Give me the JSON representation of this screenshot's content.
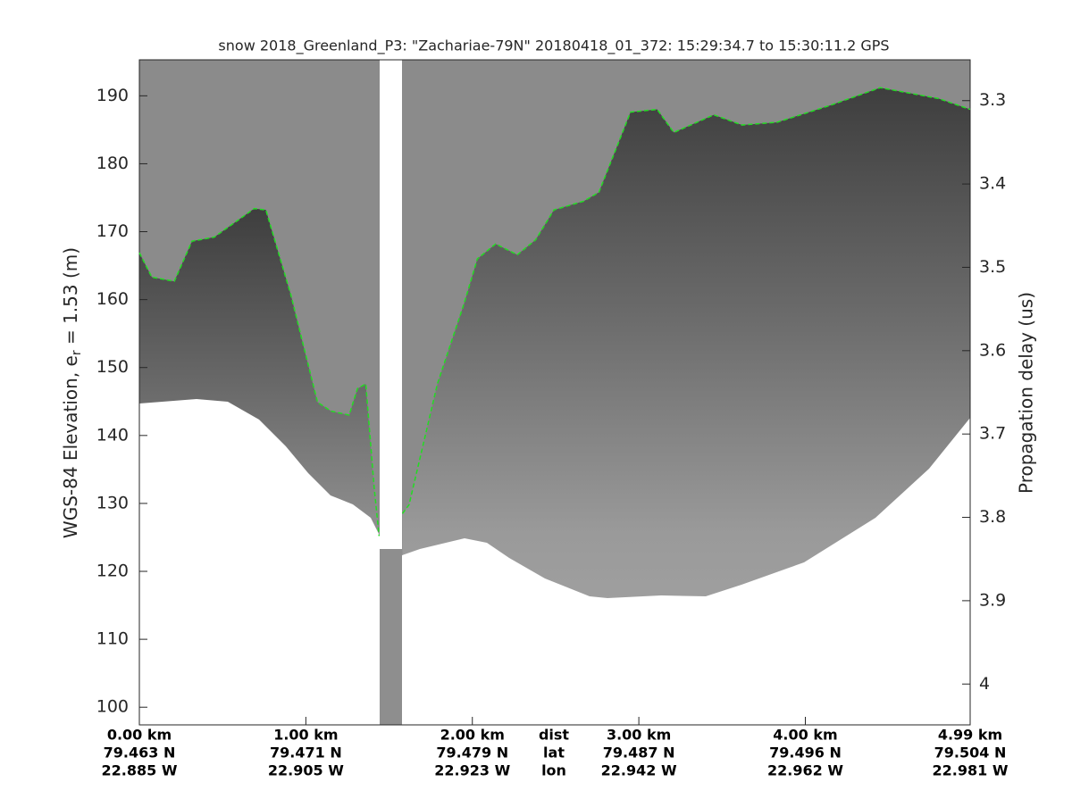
{
  "chart_data": {
    "type": "echogram",
    "title": "snow 2018_Greenland_P3: \"Zachariae-79N\"  20180418_01_372: 15:29:34.7 to 15:30:11.2 GPS",
    "ylabel": [
      "WGS-84 Elevation, e",
      "r",
      " = 1.53 (m)"
    ],
    "y2label": "Propagation delay (us)",
    "xlim": [
      0,
      4.99
    ],
    "ylim": [
      97.4,
      195.3
    ],
    "y2lim": [
      4.049,
      3.251
    ],
    "xticks": [
      {
        "value": 0,
        "label": "0.00 km"
      },
      {
        "value": 1,
        "label": "1.00 km"
      },
      {
        "value": 2,
        "label": "2.00 km"
      },
      {
        "value": 3,
        "label": "3.00 km"
      },
      {
        "value": 4,
        "label": "4.00 km"
      },
      {
        "value": 4.99,
        "label": "4.99 km"
      }
    ],
    "xtick_lat": [
      "79.463 N",
      "79.471 N",
      "79.479 N",
      "79.487 N",
      "79.496 N",
      "79.504 N"
    ],
    "xtick_lon": [
      "22.885 W",
      "22.905 W",
      "22.923 W",
      "22.942 W",
      "22.962 W",
      "22.981 W"
    ],
    "xrow_labels": [
      "dist",
      "lat",
      "lon"
    ],
    "yticks": [
      100,
      110,
      120,
      130,
      140,
      150,
      160,
      170,
      180,
      190
    ],
    "y2ticks": [
      3.3,
      3.4,
      3.5,
      3.6,
      3.7,
      3.8,
      3.9,
      4
    ],
    "series": [
      {
        "name": "surface",
        "color": "#22dd22",
        "dashed": true,
        "x": [
          0,
          0.075,
          0.21,
          0.316,
          0.45,
          0.53,
          0.69,
          0.76,
          0.91,
          1.07,
          1.15,
          1.26,
          1.31,
          1.36,
          1.41,
          1.44,
          null,
          1.58,
          1.62,
          1.79,
          1.95,
          2.03,
          2.14,
          2.27,
          2.38,
          2.49,
          2.67,
          2.76,
          2.95,
          3.11,
          3.21,
          3.45,
          3.62,
          3.83,
          4.15,
          4.45,
          4.8,
          4.99
        ],
        "values": [
          166.9,
          163.3,
          162.7,
          168.6,
          169.2,
          170.6,
          173.4,
          173.2,
          160.7,
          144.9,
          143.6,
          143.0,
          146.9,
          147.6,
          132.4,
          125.2,
          null,
          128.5,
          129.8,
          147.6,
          159.4,
          166.0,
          168.2,
          166.6,
          168.8,
          173.2,
          174.5,
          175.8,
          187.6,
          188.0,
          184.6,
          187.2,
          185.7,
          186.1,
          188.6,
          191.2,
          189.6,
          188.0
        ]
      }
    ]
  }
}
